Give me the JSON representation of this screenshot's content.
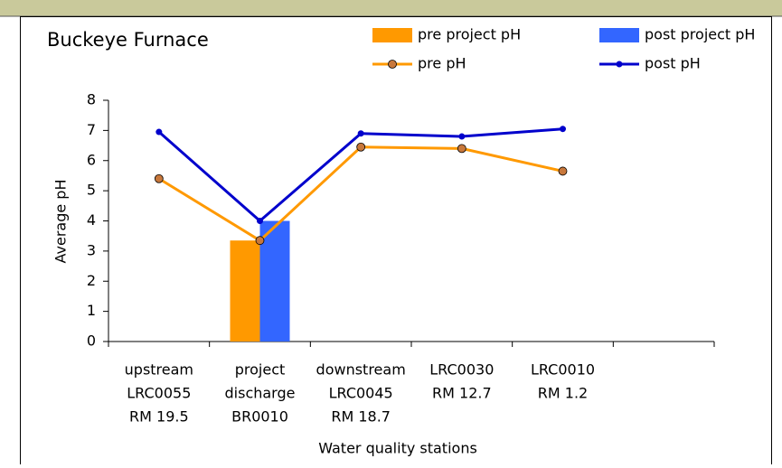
{
  "chart_data": {
    "type": "bar-line",
    "title": "Buckeye Furnace",
    "x_label": "Water quality stations",
    "y_label": "Average pH",
    "categories": [
      [
        "upstream",
        "LRC0055",
        "RM 19.5"
      ],
      [
        "project",
        "discharge",
        "BR0010"
      ],
      [
        "downstream",
        "LRC0045",
        "RM 18.7"
      ],
      [
        "LRC0030",
        "RM 12.7"
      ],
      [
        "LRC0010",
        "RM 1.2"
      ],
      null
    ],
    "series": [
      {
        "name": "pre project pH",
        "kind": "bar",
        "color": "#ff9900",
        "values": [
          null,
          3.35,
          null,
          null,
          null,
          null
        ]
      },
      {
        "name": "post project pH",
        "kind": "bar",
        "color": "#3366ff",
        "values": [
          null,
          4.0,
          null,
          null,
          null,
          null
        ]
      },
      {
        "name": "pre pH",
        "kind": "line",
        "color": "#ff9900",
        "marker": "circle",
        "values": [
          5.4,
          3.35,
          6.45,
          6.4,
          5.65,
          null
        ]
      },
      {
        "name": "post pH",
        "kind": "line",
        "color": "#0000cc",
        "marker": "dot",
        "values": [
          6.95,
          4.0,
          6.9,
          6.8,
          7.05,
          null
        ]
      }
    ],
    "ylim": [
      0,
      8
    ],
    "yticks": [
      0,
      1,
      2,
      3,
      4,
      5,
      6,
      7,
      8
    ]
  }
}
